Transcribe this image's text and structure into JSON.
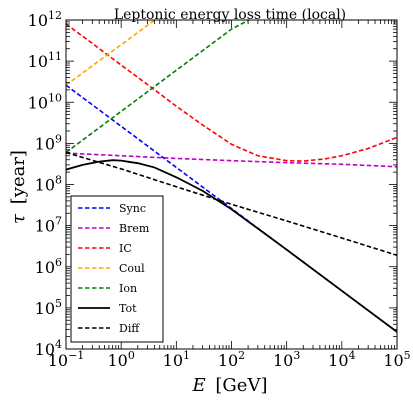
{
  "chart_data": {
    "type": "line",
    "title": "Leptonic energy loss time (local)",
    "xlabel": "E [GeV]",
    "xlabel_var": "E",
    "xlabel_unit": "[GeV]",
    "ylabel": "τ [year]",
    "ylabel_var": "τ",
    "ylabel_unit": "[year]",
    "xscale": "log",
    "yscale": "log",
    "xlim": [
      0.1,
      100000
    ],
    "ylim": [
      10000,
      1000000000000
    ],
    "xticks": [
      {
        "base": "10",
        "exp": "−1",
        "value": 0.1
      },
      {
        "base": "10",
        "exp": "0",
        "value": 1
      },
      {
        "base": "10",
        "exp": "1",
        "value": 10
      },
      {
        "base": "10",
        "exp": "2",
        "value": 100
      },
      {
        "base": "10",
        "exp": "3",
        "value": 1000
      },
      {
        "base": "10",
        "exp": "4",
        "value": 10000
      },
      {
        "base": "10",
        "exp": "5",
        "value": 100000
      }
    ],
    "yticks": [
      {
        "base": "10",
        "exp": "4",
        "value": 10000
      },
      {
        "base": "10",
        "exp": "5",
        "value": 100000
      },
      {
        "base": "10",
        "exp": "6",
        "value": 1000000
      },
      {
        "base": "10",
        "exp": "7",
        "value": 10000000
      },
      {
        "base": "10",
        "exp": "8",
        "value": 100000000
      },
      {
        "base": "10",
        "exp": "9",
        "value": 1000000000
      },
      {
        "base": "10",
        "exp": "10",
        "value": 10000000000
      },
      {
        "base": "10",
        "exp": "11",
        "value": 100000000000
      },
      {
        "base": "10",
        "exp": "12",
        "value": 1000000000000
      }
    ],
    "legend_position": "bottom-left",
    "grid": false,
    "series": [
      {
        "name": "Sync",
        "color": "#0000ff",
        "dash": "dashed",
        "x": [
          0.1,
          1,
          10,
          100,
          1000,
          10000,
          100000
        ],
        "y": [
          26000000000.0,
          2600000000.0,
          260000000.0,
          26000000.0,
          2600000.0,
          260000.0,
          26000.0
        ]
      },
      {
        "name": "Brem",
        "color": "#c000c0",
        "dash": "dashed",
        "x": [
          0.1,
          1,
          10,
          100,
          1000,
          10000,
          100000
        ],
        "y": [
          580000000.0,
          500000000.0,
          430000000.0,
          380000000.0,
          340000000.0,
          310000000.0,
          270000000.0
        ]
      },
      {
        "name": "IC",
        "color": "#ff0000",
        "dash": "dashed",
        "x": [
          0.1,
          0.3,
          1,
          3,
          10,
          30,
          100,
          300,
          1000,
          2000,
          5000,
          10000,
          30000,
          100000
        ],
        "y": [
          800000000000.0,
          270000000000.0,
          80000000000.0,
          27000000000.0,
          8000000000.0,
          2800000000.0,
          950000000.0,
          500000000.0,
          380000000.0,
          370000000.0,
          420000000.0,
          500000000.0,
          750000000.0,
          1400000000.0
        ]
      },
      {
        "name": "Coul",
        "color": "#ffa500",
        "dash": "dashed",
        "x": [
          0.1,
          0.3,
          1,
          3,
          4
        ],
        "y": [
          26000000000.0,
          77000000000.0,
          250000000000.0,
          740000000000.0,
          980000000000.0
        ]
      },
      {
        "name": "Ion",
        "color": "#008000",
        "dash": "dashed",
        "x": [
          0.1,
          1,
          10,
          100,
          300
        ],
        "y": [
          600000000.0,
          6000000000.0,
          60000000000.0,
          600000000000.0,
          1300000000000.0
        ]
      },
      {
        "name": "Tot",
        "color": "#000000",
        "dash": "solid",
        "x": [
          0.1,
          0.2,
          0.4,
          0.7,
          1,
          2,
          4,
          10,
          30,
          100,
          300,
          1000,
          10000,
          100000
        ],
        "y": [
          230000000.0,
          300000000.0,
          360000000.0,
          390000000.0,
          380000000.0,
          330000000.0,
          260000000.0,
          150000000.0,
          70000000.0,
          25000000.0,
          8500000.0,
          2600000.0,
          260000.0,
          26000.0
        ]
      },
      {
        "name": "Diff",
        "color": "#000000",
        "dash": "dashed",
        "x": [
          0.1,
          1,
          10,
          100,
          1000,
          10000,
          100000
        ],
        "y": [
          600000000.0,
          240000000.0,
          88000000.0,
          33000000.0,
          13000000.0,
          5000000.0,
          1900000.0
        ]
      }
    ]
  }
}
